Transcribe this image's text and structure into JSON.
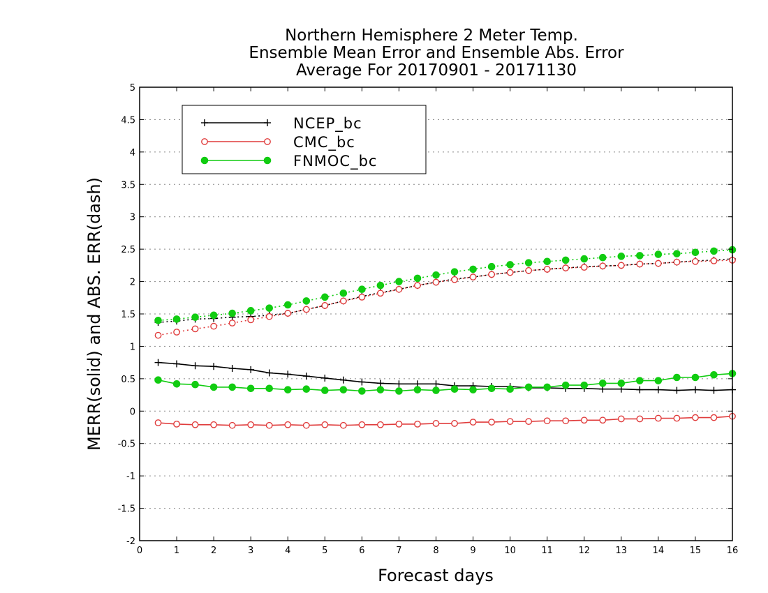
{
  "chart_data": {
    "type": "line",
    "title": [
      "Northern Hemisphere 2 Meter Temp.",
      "Ensemble Mean Error and Ensemble Abs. Error",
      "Average For 20170901 - 20171130"
    ],
    "xlabel": "Forecast days",
    "ylabel": "MERR(solid) and ABS. ERR(dash)",
    "xlim": [
      0,
      16
    ],
    "ylim": [
      -2,
      5
    ],
    "x_ticks": [
      0,
      1,
      2,
      3,
      4,
      5,
      6,
      7,
      8,
      9,
      10,
      11,
      12,
      13,
      14,
      15,
      16
    ],
    "y_ticks": [
      -2,
      -1.5,
      -1,
      -0.5,
      0,
      0.5,
      1,
      1.5,
      2,
      2.5,
      3,
      3.5,
      4,
      4.5,
      5
    ],
    "y_tick_labels": [
      "-2",
      "-1.5",
      "-1",
      "-0.5",
      "0",
      "0.5",
      "1",
      "1.5",
      "2",
      "2.5",
      "3",
      "3.5",
      "4",
      "4.5",
      "5"
    ],
    "grid": "horizontal dotted",
    "legend_placement": "top-left",
    "x": [
      0.5,
      1,
      1.5,
      2,
      2.5,
      3,
      3.5,
      4,
      4.5,
      5,
      5.5,
      6,
      6.5,
      7,
      7.5,
      8,
      8.5,
      9,
      9.5,
      10,
      10.5,
      11,
      11.5,
      12,
      12.5,
      13,
      13.5,
      14,
      14.5,
      15,
      15.5,
      16
    ],
    "series": [
      {
        "name": "NCEP_bc",
        "color": "#000000",
        "marker": "plus",
        "merr": [
          0.75,
          0.73,
          0.7,
          0.69,
          0.66,
          0.64,
          0.59,
          0.57,
          0.54,
          0.51,
          0.48,
          0.45,
          0.43,
          0.42,
          0.42,
          0.42,
          0.39,
          0.39,
          0.38,
          0.38,
          0.36,
          0.36,
          0.35,
          0.35,
          0.34,
          0.34,
          0.33,
          0.33,
          0.32,
          0.33,
          0.32,
          0.33
        ],
        "abs_err": [
          1.37,
          1.39,
          1.42,
          1.43,
          1.45,
          1.46,
          1.48,
          1.51,
          1.57,
          1.63,
          1.7,
          1.77,
          1.83,
          1.88,
          1.94,
          1.99,
          2.04,
          2.07,
          2.11,
          2.14,
          2.17,
          2.19,
          2.21,
          2.23,
          2.24,
          2.25,
          2.27,
          2.28,
          2.3,
          2.32,
          2.33,
          2.35
        ]
      },
      {
        "name": "CMC_bc",
        "color": "#e03c3c",
        "marker": "open-circle",
        "merr": [
          -0.18,
          -0.2,
          -0.21,
          -0.21,
          -0.22,
          -0.21,
          -0.22,
          -0.21,
          -0.22,
          -0.21,
          -0.22,
          -0.21,
          -0.21,
          -0.2,
          -0.2,
          -0.19,
          -0.19,
          -0.17,
          -0.17,
          -0.16,
          -0.16,
          -0.15,
          -0.15,
          -0.14,
          -0.14,
          -0.12,
          -0.12,
          -0.11,
          -0.11,
          -0.1,
          -0.1,
          -0.08
        ],
        "abs_err": [
          1.17,
          1.22,
          1.27,
          1.31,
          1.36,
          1.41,
          1.46,
          1.51,
          1.57,
          1.63,
          1.7,
          1.76,
          1.82,
          1.88,
          1.94,
          1.99,
          2.03,
          2.07,
          2.11,
          2.14,
          2.17,
          2.19,
          2.21,
          2.22,
          2.24,
          2.25,
          2.27,
          2.28,
          2.3,
          2.31,
          2.32,
          2.33
        ]
      },
      {
        "name": "FNMOC_bc",
        "color": "#11cc11",
        "marker": "filled-circle",
        "merr": [
          0.48,
          0.42,
          0.41,
          0.37,
          0.37,
          0.35,
          0.35,
          0.33,
          0.34,
          0.32,
          0.33,
          0.31,
          0.33,
          0.31,
          0.33,
          0.32,
          0.34,
          0.33,
          0.35,
          0.34,
          0.37,
          0.37,
          0.4,
          0.4,
          0.43,
          0.43,
          0.47,
          0.47,
          0.52,
          0.52,
          0.56,
          0.58
        ],
        "abs_err": [
          1.4,
          1.42,
          1.45,
          1.48,
          1.51,
          1.55,
          1.59,
          1.64,
          1.7,
          1.76,
          1.82,
          1.88,
          1.94,
          2.0,
          2.05,
          2.1,
          2.15,
          2.19,
          2.23,
          2.26,
          2.29,
          2.31,
          2.33,
          2.35,
          2.37,
          2.39,
          2.4,
          2.42,
          2.43,
          2.45,
          2.47,
          2.49
        ]
      }
    ]
  }
}
